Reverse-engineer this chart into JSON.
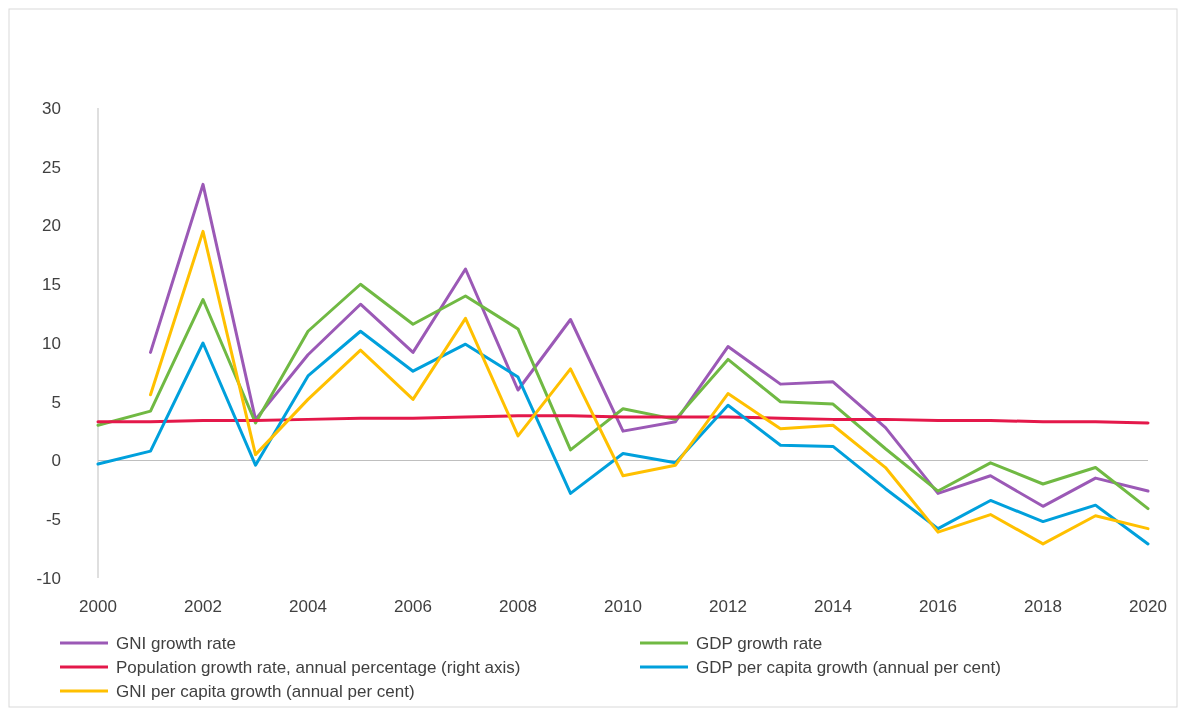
{
  "chart_data": {
    "type": "line",
    "x": [
      2000,
      2001,
      2002,
      2003,
      2004,
      2005,
      2006,
      2007,
      2008,
      2009,
      2010,
      2011,
      2012,
      2013,
      2014,
      2015,
      2016,
      2017,
      2018,
      2019,
      2020
    ],
    "xlim": [
      2000,
      2020
    ],
    "xticks": [
      2000,
      2002,
      2004,
      2006,
      2008,
      2010,
      2012,
      2014,
      2016,
      2018,
      2020
    ],
    "ylim": [
      -10,
      30
    ],
    "yticks": [
      -10,
      -5,
      0,
      5,
      10,
      15,
      20,
      25,
      30
    ],
    "legend": "bottom",
    "marker": "none",
    "line_style": "solid",
    "series": [
      {
        "name": "GNI growth rate",
        "color": "#9b59b6",
        "values": [
          null,
          9.2,
          23.5,
          3.5,
          9,
          13.3,
          9.2,
          16.3,
          6,
          12,
          2.5,
          3.3,
          9.7,
          6.5,
          6.7,
          2.8,
          -2.8,
          -1.3,
          -3.9,
          -1.5,
          -2.6
        ]
      },
      {
        "name": "GDP growth rate",
        "color": "#70b943",
        "values": [
          3,
          4.2,
          13.7,
          3.2,
          11,
          15,
          11.6,
          14,
          11.2,
          0.9,
          4.4,
          3.5,
          8.6,
          5,
          4.8,
          1,
          -2.6,
          -0.2,
          -2,
          -0.6,
          -4.1
        ]
      },
      {
        "name": "Population growth rate, annual percentage (right axis)",
        "color": "#e4184a",
        "values": [
          3.3,
          3.3,
          3.4,
          3.4,
          3.5,
          3.6,
          3.6,
          3.7,
          3.8,
          3.8,
          3.7,
          3.7,
          3.7,
          3.6,
          3.5,
          3.5,
          3.4,
          3.4,
          3.3,
          3.3,
          3.2
        ]
      },
      {
        "name": "GDP per capita growth (annual per cent)",
        "color": "#00a0dc",
        "values": [
          -0.3,
          0.8,
          10,
          -0.4,
          7.2,
          11,
          7.6,
          9.9,
          7.1,
          -2.8,
          0.6,
          -0.2,
          4.7,
          1.3,
          1.2,
          -2.4,
          -5.8,
          -3.4,
          -5.2,
          -3.8,
          -7.1
        ]
      },
      {
        "name": "GNI per capita growth (annual per cent)",
        "color": "#ffc000",
        "values": [
          null,
          5.6,
          19.5,
          0.5,
          5.2,
          9.4,
          5.2,
          12.1,
          2.1,
          7.8,
          -1.3,
          -0.4,
          5.7,
          2.7,
          3,
          -0.6,
          -6.1,
          -4.6,
          -7.1,
          -4.7,
          -5.8
        ]
      }
    ]
  }
}
